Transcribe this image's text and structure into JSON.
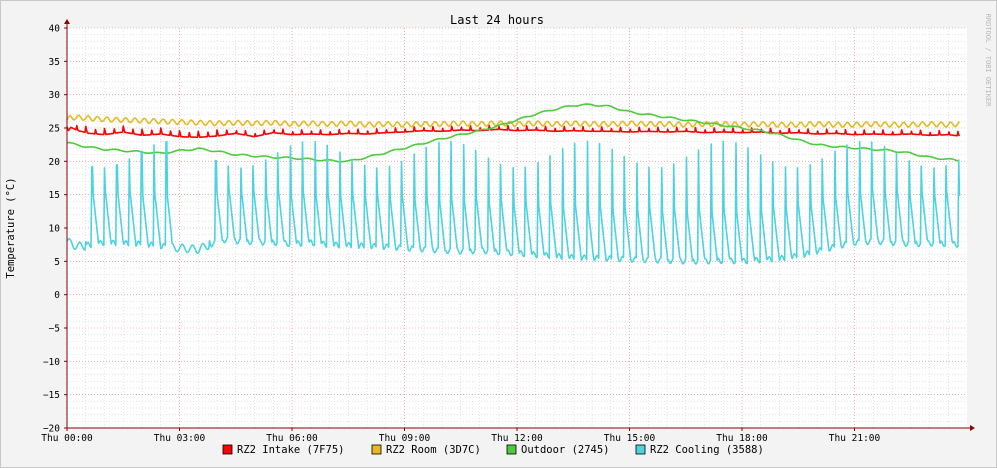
{
  "chart_data": {
    "type": "line",
    "title": "Last 24 hours",
    "ylabel": "Temperature (°C)",
    "xlabel": "",
    "watermark": "RRDTOOL / TOBI OETIKER",
    "ylim": [
      -20,
      40
    ],
    "yticks": [
      40,
      35,
      30,
      25,
      20,
      15,
      10,
      5,
      0,
      -5,
      -10,
      -15,
      -20
    ],
    "ytick_labels": [
      "40",
      "35",
      "30",
      "25",
      "20",
      "15",
      "10",
      "5",
      "0",
      "−5",
      "−10",
      "−15",
      "−20"
    ],
    "xlim": [
      0,
      24
    ],
    "xticks": [
      0,
      3,
      6,
      9,
      12,
      15,
      18,
      21
    ],
    "xtick_labels": [
      "Thu 00:00",
      "Thu 03:00",
      "Thu 06:00",
      "Thu 09:00",
      "Thu 12:00",
      "Thu 15:00",
      "Thu 18:00",
      "Thu 21:00"
    ],
    "grid": true,
    "legend_position": "bottom",
    "colors": {
      "background": "#f3f3f3",
      "canvas": "#ffffff",
      "major_grid": "#e08080",
      "minor_grid": "#c8c8c8",
      "axis": "#8b0000"
    },
    "series": [
      {
        "name": "RZ2 Intake (7F75)",
        "color": "#ff0000",
        "x": [
          0,
          0.1,
          0.3,
          0.6,
          1.0,
          1.5,
          2.0,
          2.5,
          3.0,
          3.5,
          4.0,
          4.5,
          5.0,
          5.5,
          6.0,
          6.5,
          7.0,
          7.5,
          8.0,
          8.5,
          9.0,
          9.5,
          10.0,
          10.5,
          11.0,
          11.5,
          12.0,
          12.5,
          13.0,
          13.5,
          14.0,
          14.5,
          15.0,
          15.5,
          16.0,
          16.5,
          17.0,
          17.5,
          18.0,
          18.5,
          19.0,
          19.5,
          20.0,
          20.5,
          21.0,
          21.5,
          22.0,
          22.5,
          23.0,
          23.5,
          23.8
        ],
        "y": [
          24.3,
          25.1,
          24.6,
          24.2,
          24.0,
          24.4,
          23.9,
          24.1,
          23.7,
          23.6,
          23.8,
          24.2,
          23.7,
          24.3,
          24.0,
          24.1,
          24.0,
          24.2,
          24.1,
          24.3,
          24.4,
          24.6,
          24.5,
          24.7,
          24.6,
          24.8,
          24.6,
          24.7,
          24.5,
          24.6,
          24.5,
          24.5,
          24.4,
          24.5,
          24.4,
          24.5,
          24.3,
          24.4,
          24.3,
          24.4,
          24.2,
          24.3,
          24.1,
          24.2,
          24.0,
          24.1,
          24.0,
          24.1,
          23.9,
          24.0,
          23.8
        ]
      },
      {
        "name": "RZ2 Room (3D7C)",
        "color": "#e6b822",
        "x": [
          0,
          0.1,
          0.5,
          1.0,
          1.5,
          2.0,
          2.5,
          3.0,
          3.5,
          4.0,
          4.5,
          5.0,
          5.5,
          6.0,
          6.5,
          7.0,
          7.5,
          8.0,
          8.5,
          9.0,
          9.5,
          10.0,
          10.5,
          11.0,
          11.5,
          12.0,
          12.5,
          13.0,
          13.5,
          14.0,
          14.5,
          15.0,
          15.5,
          16.0,
          16.5,
          17.0,
          17.5,
          18.0,
          18.5,
          19.0,
          19.5,
          20.0,
          20.5,
          21.0,
          21.5,
          22.0,
          22.5,
          23.0,
          23.5,
          23.8
        ],
        "y": [
          26.2,
          26.6,
          26.5,
          26.3,
          26.2,
          26.1,
          26.0,
          25.9,
          25.8,
          25.7,
          25.8,
          25.7,
          25.8,
          25.6,
          25.7,
          25.6,
          25.7,
          25.5,
          25.6,
          25.5,
          25.6,
          25.6,
          25.7,
          25.6,
          25.7,
          25.6,
          25.7,
          25.6,
          25.7,
          25.6,
          25.6,
          25.7,
          25.6,
          25.6,
          25.5,
          25.6,
          25.6,
          25.5,
          25.6,
          25.5,
          25.5,
          25.6,
          25.5,
          25.5,
          25.6,
          25.5,
          25.5,
          25.6,
          25.5,
          25.6
        ]
      },
      {
        "name": "Outdoor (2745)",
        "color": "#4ccc3a",
        "x": [
          0,
          0.5,
          1.0,
          1.5,
          2.0,
          2.5,
          3.0,
          3.5,
          4.0,
          4.5,
          5.0,
          5.5,
          6.0,
          6.5,
          7.0,
          7.5,
          8.0,
          8.5,
          9.0,
          9.5,
          10.0,
          10.5,
          11.0,
          11.5,
          12.0,
          12.5,
          13.0,
          13.5,
          14.0,
          14.5,
          15.0,
          15.5,
          16.0,
          16.5,
          17.0,
          17.5,
          18.0,
          18.5,
          19.0,
          19.5,
          20.0,
          20.5,
          21.0,
          21.5,
          22.0,
          22.5,
          23.0,
          23.5,
          23.8
        ],
        "y": [
          22.8,
          22.2,
          21.8,
          21.6,
          21.4,
          21.2,
          21.6,
          21.9,
          21.5,
          21.0,
          20.8,
          20.6,
          20.5,
          20.3,
          20.1,
          20.0,
          20.6,
          21.3,
          22.0,
          22.7,
          23.4,
          24.0,
          24.6,
          25.3,
          26.2,
          27.1,
          27.8,
          28.4,
          28.5,
          28.2,
          27.4,
          27.0,
          26.6,
          26.2,
          25.8,
          25.4,
          25.0,
          24.6,
          24.0,
          23.2,
          22.5,
          22.2,
          22.0,
          21.8,
          21.6,
          21.2,
          20.6,
          20.3,
          20.1
        ]
      },
      {
        "name": "RZ2 Cooling (3588)",
        "color": "#4dd2e0",
        "x": [
          0,
          0.2,
          0.4,
          0.6,
          0.8,
          1.0,
          1.5,
          2.0,
          2.5,
          3.0,
          3.5,
          3.8,
          4.2,
          4.6,
          5.0,
          5.5,
          6.0,
          6.5,
          7.0,
          7.5,
          8.0,
          8.5,
          9.0,
          9.5,
          10.0,
          10.5,
          11.0,
          11.5,
          12.0,
          12.5,
          13.0,
          13.5,
          14.0,
          14.5,
          15.0,
          15.5,
          16.0,
          16.5,
          17.0,
          17.5,
          18.0,
          18.5,
          19.0,
          19.5,
          20.0,
          20.5,
          21.0,
          21.5,
          22.0,
          22.5,
          23.0,
          23.5,
          23.8
        ],
        "y": [
          8.0,
          7.4,
          7.2,
          7.5,
          7.6,
          7.8,
          7.7,
          7.6,
          7.3,
          7.0,
          6.8,
          7.5,
          8.2,
          8.0,
          7.9,
          7.8,
          7.6,
          7.8,
          7.5,
          7.4,
          7.3,
          7.2,
          7.0,
          6.8,
          6.6,
          6.5,
          6.6,
          6.4,
          6.2,
          6.0,
          5.8,
          5.6,
          5.5,
          5.4,
          5.3,
          5.2,
          5.1,
          5.0,
          5.0,
          5.1,
          5.0,
          5.2,
          5.4,
          5.8,
          6.5,
          7.2,
          7.8,
          8.0,
          7.8,
          7.6,
          7.7,
          7.6,
          7.5
        ],
        "cycle_peak": 21
      }
    ]
  }
}
